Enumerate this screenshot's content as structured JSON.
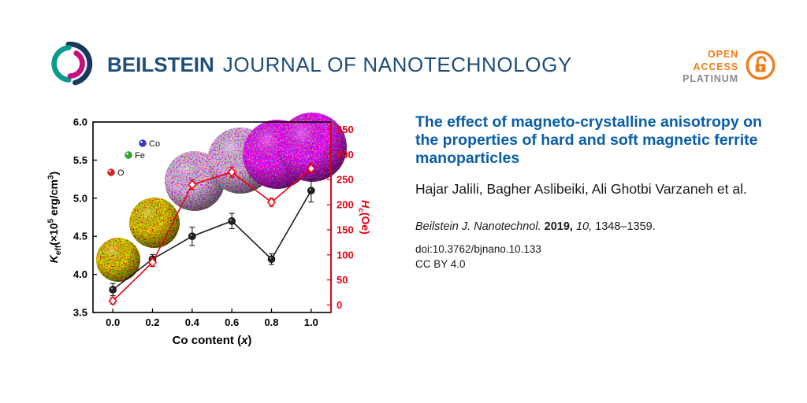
{
  "header": {
    "brand": {
      "bold": "BEILSTEIN",
      "rest": "JOURNAL OF NANOTECHNOLOGY"
    },
    "open_access": {
      "open": "OPEN",
      "access": "ACCESS",
      "platinum": "PLATINUM"
    }
  },
  "article": {
    "title": "The effect of magneto-crystalline anisotropy on the properties of hard and soft magnetic ferrite manoparticles",
    "authors": "Hajar Jalili, Bagher Aslibeiki, Ali Ghotbi Varzaneh et al.",
    "citation": {
      "journal": "Beilstein J. Nanotechnol.",
      "year": "2019,",
      "volume": "10,",
      "pages": "1348–1359."
    },
    "doi": "doi:10.3762/bjnano.10.133",
    "license": "CC BY 4.0"
  },
  "colors": {
    "brand_blue": "#1f4e79",
    "title_blue": "#0a5ea8",
    "accent_red": "#e8000d",
    "open_access_orange": "#ef7d1a",
    "platinum_gray": "#8c8c8e"
  },
  "chart_data": {
    "type": "line",
    "x": [
      0.0,
      0.2,
      0.4,
      0.6,
      0.8,
      1.0
    ],
    "xticks": [
      0.0,
      0.2,
      0.4,
      0.6,
      0.8,
      1.0
    ],
    "xlim": [
      -0.1,
      1.1
    ],
    "xlabel_parts": [
      {
        "t": "Co content (",
        "s": "n"
      },
      {
        "t": "x",
        "s": "i"
      },
      {
        "t": ")",
        "s": "n"
      }
    ],
    "left_axis": {
      "label_parts": [
        {
          "t": "K",
          "s": "i"
        },
        {
          "t": "eff",
          "s": "sub"
        },
        {
          "t": "(×10",
          "s": "n"
        },
        {
          "t": "5",
          "s": "sup"
        },
        {
          "t": " erg/cm",
          "s": "n"
        },
        {
          "t": "3",
          "s": "sup"
        },
        {
          "t": ")",
          "s": "n"
        }
      ],
      "lim": [
        3.5,
        6.0
      ],
      "ticks": [
        3.5,
        4.0,
        4.5,
        5.0,
        5.5,
        6.0
      ],
      "color": "#000000"
    },
    "right_axis": {
      "label_parts": [
        {
          "t": "H",
          "s": "i"
        },
        {
          "t": "c",
          "s": "sub"
        },
        {
          "t": "(Oe)",
          "s": "n"
        }
      ],
      "lim": [
        -15,
        365
      ],
      "ticks": [
        0,
        50,
        100,
        150,
        200,
        250,
        300,
        350
      ],
      "color": "#e8000d"
    },
    "series": [
      {
        "name": "Keff",
        "axis": "left",
        "marker": "circle",
        "color": "#1a1a1a",
        "values": [
          3.8,
          4.2,
          4.5,
          4.7,
          4.2,
          5.1
        ],
        "errors": [
          0.08,
          0.06,
          0.12,
          0.1,
          0.07,
          0.15
        ]
      },
      {
        "name": "Hc",
        "axis": "right",
        "marker": "diamond",
        "color": "#e8000d",
        "values": [
          8,
          85,
          240,
          265,
          205,
          272
        ],
        "errors": [
          6,
          8,
          10,
          10,
          8,
          8
        ]
      }
    ],
    "legend": [
      {
        "label": "Co",
        "color": "#3535d6"
      },
      {
        "label": "Fe",
        "color": "#28b028"
      },
      {
        "label": "O",
        "color": "#e02020"
      }
    ],
    "grid": false,
    "legend_position": "inside-top-left"
  }
}
